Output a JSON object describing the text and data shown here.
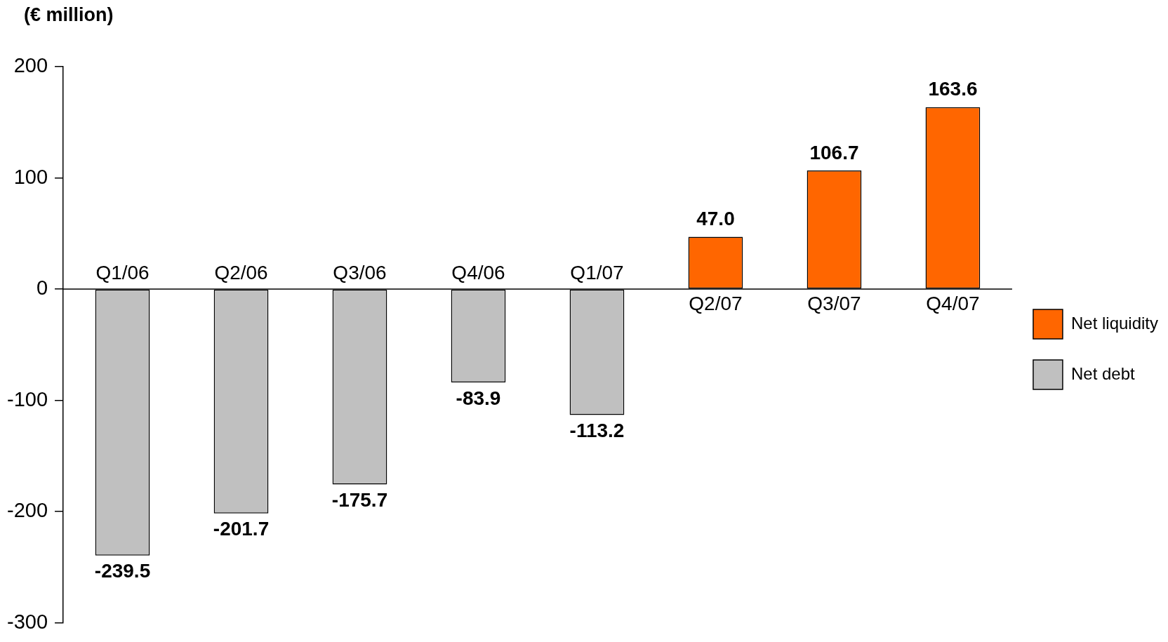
{
  "chart_data": {
    "type": "bar",
    "ylabel": "(€ million)",
    "categories": [
      "Q1/06",
      "Q2/06",
      "Q3/06",
      "Q4/06",
      "Q1/07",
      "Q2/07",
      "Q3/07",
      "Q4/07"
    ],
    "series": [
      {
        "name": "Net liquidity",
        "color": "#ff6600",
        "values": [
          null,
          null,
          null,
          null,
          null,
          47.0,
          106.7,
          163.6
        ],
        "value_labels": [
          null,
          null,
          null,
          null,
          null,
          "47.0",
          "106.7",
          "163.6"
        ]
      },
      {
        "name": "Net debt",
        "color": "#c0c0c0",
        "values": [
          -239.5,
          -201.7,
          -175.7,
          -83.9,
          -113.2,
          null,
          null,
          null
        ],
        "value_labels": [
          "-239.5",
          "-201.7",
          "-175.7",
          "-83.9",
          "-113.2",
          null,
          null,
          null
        ]
      }
    ],
    "ylim": [
      -300,
      200
    ],
    "yticks": [
      -300,
      -200,
      -100,
      0,
      100,
      200
    ],
    "grid": false,
    "legend": "right"
  }
}
